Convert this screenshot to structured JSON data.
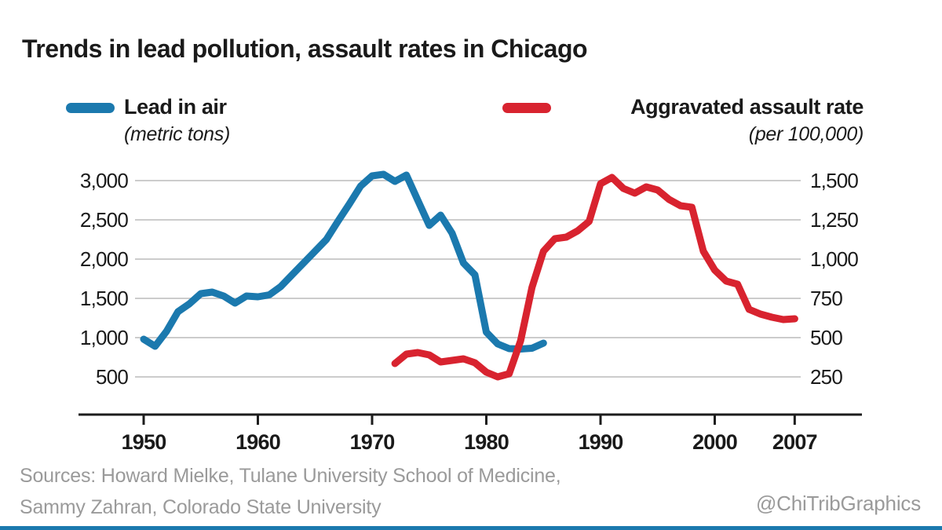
{
  "colors": {
    "lead_blue": "#1b79ae",
    "assault_red": "#d8232f",
    "grid": "#cccccc",
    "axis": "#1d1d1d",
    "text": "#1a1a1a",
    "muted_text": "#9a9a9a",
    "bottom_bar": "#1b79ae"
  },
  "chart_data": {
    "type": "line",
    "title": "Trends in lead pollution, assault rates in Chicago",
    "grid": true,
    "legend_position": "top",
    "x_axis": {
      "ticks": [
        {
          "year": 1950,
          "label": "1950"
        },
        {
          "year": 1960,
          "label": "1960"
        },
        {
          "year": 1970,
          "label": "1970"
        },
        {
          "year": 1980,
          "label": "1980"
        },
        {
          "year": 1990,
          "label": "1990"
        },
        {
          "year": 2000,
          "label": "2000"
        },
        {
          "year": 2007,
          "label": "2007"
        }
      ]
    },
    "left_axis": {
      "ylim": [
        0,
        3000
      ],
      "ticks": [
        {
          "value": 3000,
          "label": "3,000"
        },
        {
          "value": 2500,
          "label": "2,500"
        },
        {
          "value": 2000,
          "label": "2,000"
        },
        {
          "value": 1500,
          "label": "1,500"
        },
        {
          "value": 1000,
          "label": "1,000"
        },
        {
          "value": 500,
          "label": "500"
        }
      ]
    },
    "right_axis": {
      "ylim": [
        0,
        1500
      ],
      "ticks": [
        {
          "value": 1500,
          "label": "1,500"
        },
        {
          "value": 1250,
          "label": "1,250"
        },
        {
          "value": 1000,
          "label": "1,000"
        },
        {
          "value": 750,
          "label": "750"
        },
        {
          "value": 500,
          "label": "500"
        },
        {
          "value": 250,
          "label": "250"
        }
      ]
    },
    "series": [
      {
        "name": "Lead in air",
        "unit": "(metric tons)",
        "axis": "left",
        "color": "#1b79ae",
        "start_year": 1950,
        "values": [
          980,
          890,
          1080,
          1330,
          1430,
          1560,
          1580,
          1530,
          1440,
          1530,
          1520,
          1545,
          1650,
          1800,
          1950,
          2100,
          2250,
          2480,
          2700,
          2930,
          3060,
          3080,
          2990,
          3070,
          2750,
          2430,
          2560,
          2330,
          1950,
          1800,
          1070,
          920,
          860,
          855,
          865,
          930
        ]
      },
      {
        "name": "Aggravated assault rate",
        "unit": "(per 100,000)",
        "axis": "right",
        "color": "#d8232f",
        "start_year": 1972,
        "values": [
          335,
          395,
          405,
          390,
          345,
          355,
          365,
          340,
          280,
          250,
          270,
          480,
          820,
          1050,
          1130,
          1140,
          1180,
          1240,
          1480,
          1520,
          1450,
          1420,
          1460,
          1440,
          1380,
          1340,
          1330,
          1050,
          930,
          860,
          840,
          680,
          650,
          630,
          615,
          620
        ]
      }
    ]
  },
  "footer": {
    "sources_line1": "Sources: Howard Mielke, Tulane University School of Medicine,",
    "sources_line2": "Sammy Zahran, Colorado State University",
    "handle": "@ChiTribGraphics"
  }
}
